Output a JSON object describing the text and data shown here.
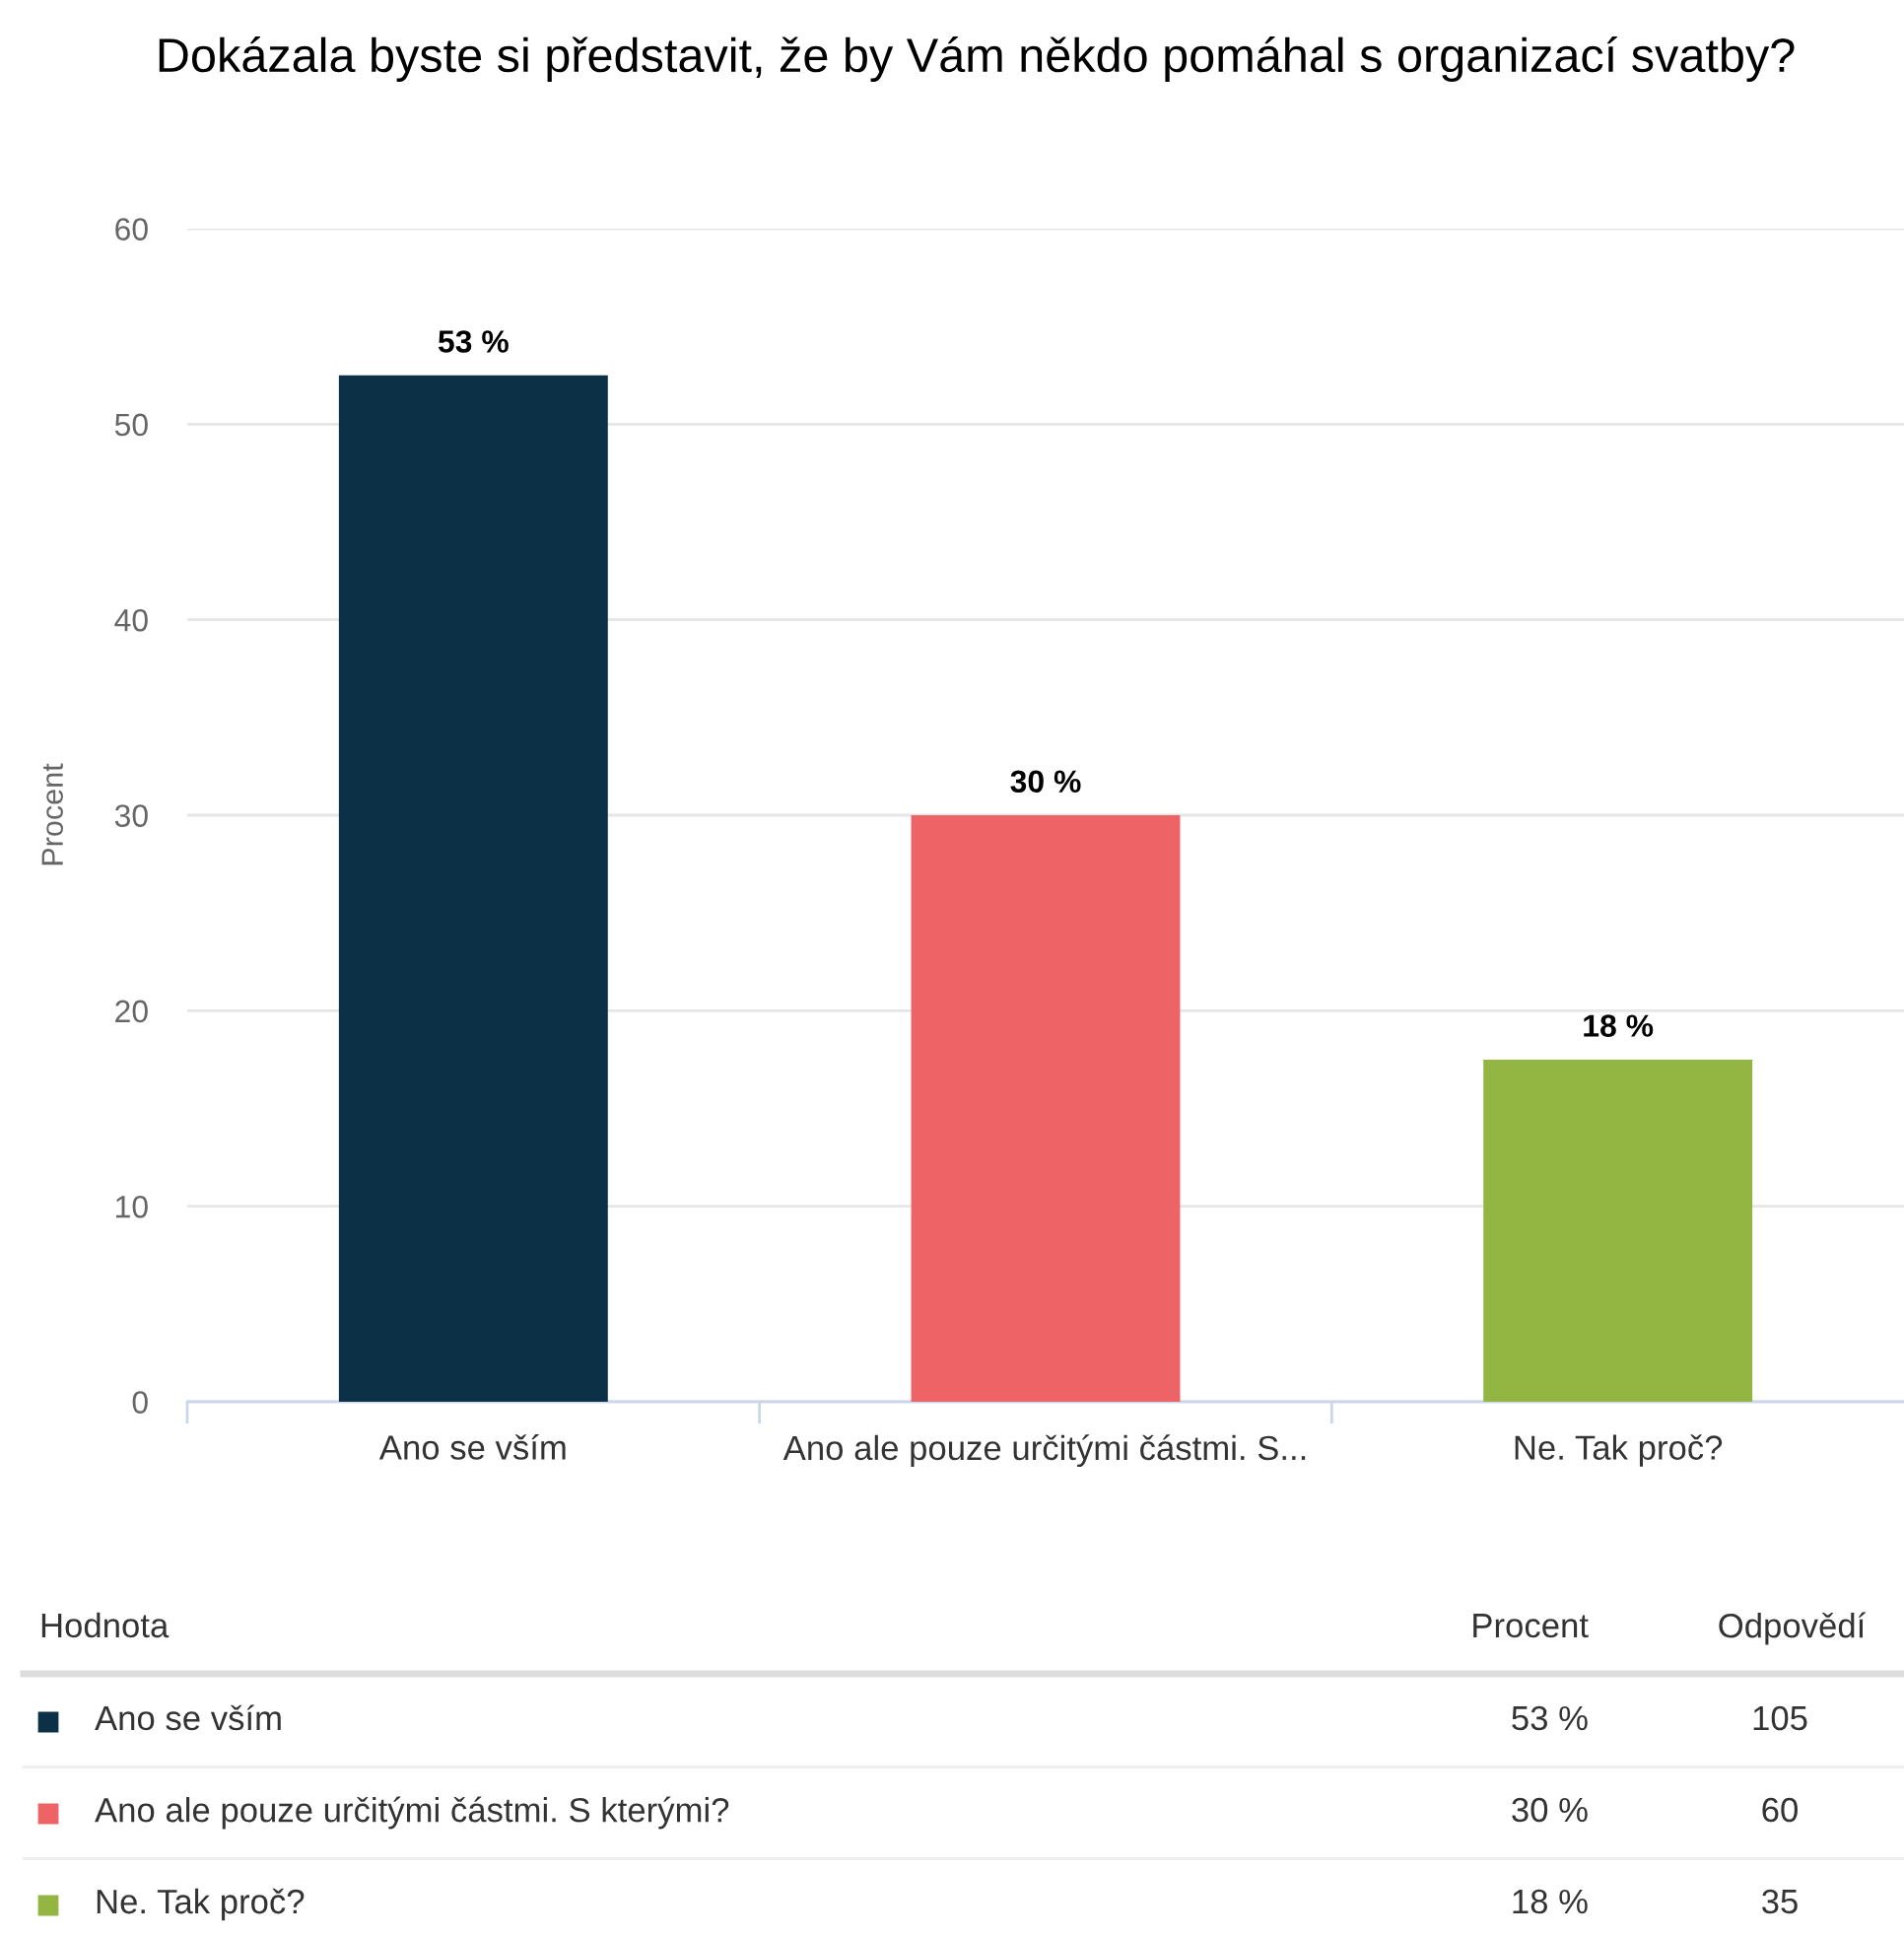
{
  "chart_data": {
    "type": "bar",
    "title": "Dokázala byste si představit, že by Vám někdo pomáhal s organizací svatby?",
    "ylabel": "Procent",
    "categories": [
      "Ano se vším",
      "Ano ale pouze určitými částmi. S...",
      "Ne. Tak proč?"
    ],
    "values": [
      52.5,
      30,
      17.5
    ],
    "colors": [
      "#0c3147",
      "#ee6466",
      "#93b642"
    ],
    "value_labels": [
      "53 %",
      "30 %",
      "18 %"
    ],
    "ylim": [
      0,
      60
    ],
    "yticks": [
      0,
      10,
      20,
      30,
      40,
      50,
      60
    ],
    "grid": "y",
    "annotations": [
      "Hodnota",
      "Procent",
      "Odpovědí",
      "Ano se vším",
      "53 %",
      "105",
      "Ano ale pouze určitými částmi. S kterými?",
      "30 %",
      "60",
      "Ne. Tak proč?",
      "18 %",
      "35"
    ]
  }
}
